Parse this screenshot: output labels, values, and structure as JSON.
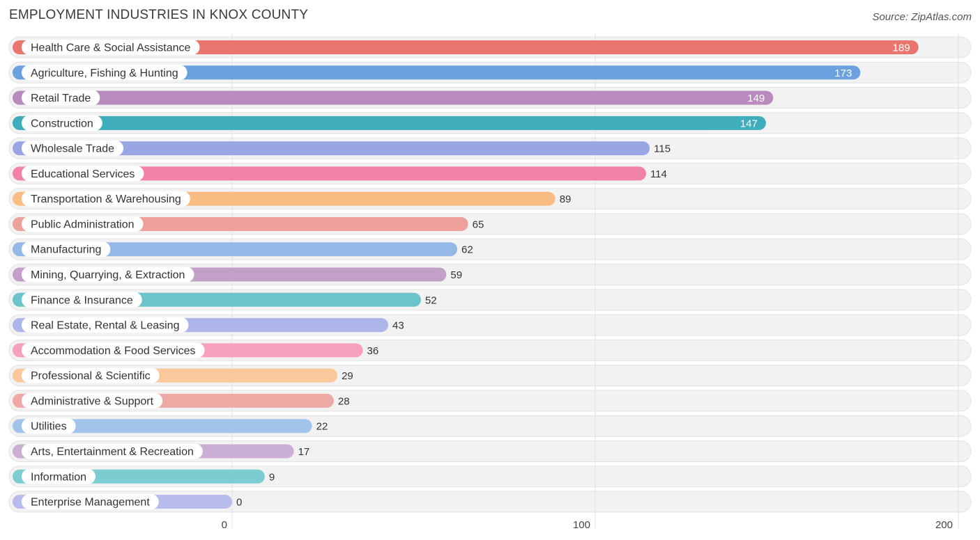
{
  "header": {
    "title": "EMPLOYMENT INDUSTRIES IN KNOX COUNTY",
    "source": "Source: ZipAtlas.com"
  },
  "chart_data": {
    "type": "bar",
    "orientation": "horizontal",
    "title": "EMPLOYMENT INDUSTRIES IN KNOX COUNTY",
    "xlabel": "",
    "ylabel": "",
    "xlim": [
      0,
      200
    ],
    "ticks": [
      0,
      100,
      200
    ],
    "grid": true,
    "categories": [
      "Health Care & Social Assistance",
      "Agriculture, Fishing & Hunting",
      "Retail Trade",
      "Construction",
      "Wholesale Trade",
      "Educational Services",
      "Transportation & Warehousing",
      "Public Administration",
      "Manufacturing",
      "Mining, Quarrying, & Extraction",
      "Finance & Insurance",
      "Real Estate, Rental & Leasing",
      "Accommodation & Food Services",
      "Professional & Scientific",
      "Administrative & Support",
      "Utilities",
      "Arts, Entertainment & Recreation",
      "Information",
      "Enterprise Management"
    ],
    "values": [
      189,
      173,
      149,
      147,
      115,
      114,
      89,
      65,
      62,
      59,
      52,
      43,
      36,
      29,
      28,
      22,
      17,
      9,
      0
    ],
    "colors": [
      "#e8766f",
      "#6ca1df",
      "#b88abd",
      "#3fadbc",
      "#9aa6e3",
      "#f282a6",
      "#f9bd84",
      "#eda09c",
      "#94b9e6",
      "#c3a0c8",
      "#6cc4ca",
      "#aeb5eb",
      "#f6a0bd",
      "#f9c99b",
      "#efa9a5",
      "#a2c4ea",
      "#cbaed3",
      "#7ccdd2",
      "#b7bcec"
    ]
  }
}
